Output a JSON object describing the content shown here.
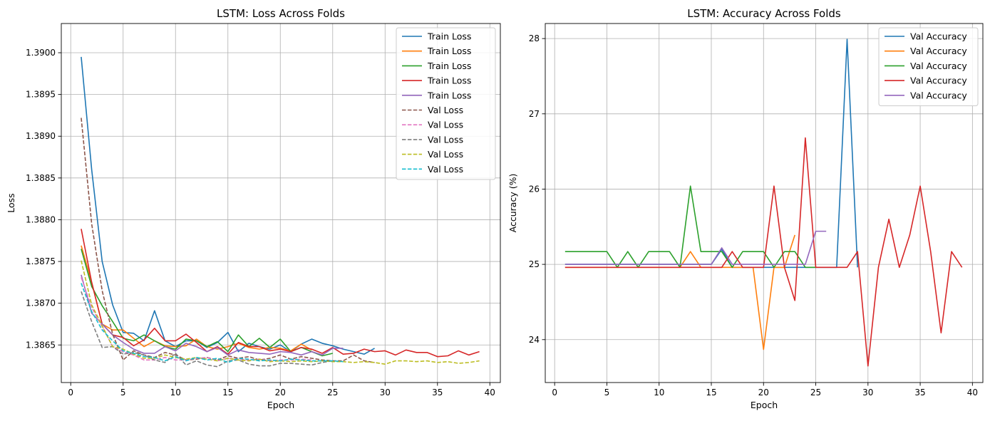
{
  "colors": {
    "c0": "#1f77b4",
    "c1": "#ff7f0e",
    "c2": "#2ca02c",
    "c3": "#d62728",
    "c4": "#9467bd",
    "c5": "#8c564b",
    "c6": "#e377c2",
    "c7": "#7f7f7f",
    "c8": "#bcbd22",
    "c9": "#17becf"
  },
  "chart_data": [
    {
      "type": "line",
      "title": "LSTM: Loss Across Folds",
      "xlabel": "Epoch",
      "ylabel": "Loss",
      "xlim": [
        -0.9,
        41.0
      ],
      "ylim": [
        1.38605,
        1.39035
      ],
      "xticks": [
        0,
        5,
        10,
        15,
        20,
        25,
        30,
        35,
        40
      ],
      "yticks": [
        1.3865,
        1.387,
        1.3875,
        1.388,
        1.3885,
        1.389,
        1.3895,
        1.39
      ],
      "ytick_labels": [
        "1.3865",
        "1.3870",
        "1.3875",
        "1.3880",
        "1.3885",
        "1.3890",
        "1.3895",
        "1.3900"
      ],
      "grid": true,
      "legend": "upper right",
      "series": [
        {
          "name": "Train Loss",
          "color": "#1f77b4",
          "dash": "solid",
          "x": [
            1,
            2,
            3,
            4,
            5,
            6,
            7,
            8,
            9,
            10,
            11,
            12,
            13,
            14,
            15,
            16,
            17,
            18,
            19,
            20,
            21,
            22,
            23,
            24,
            25,
            26,
            27,
            28,
            29
          ],
          "y": [
            1.38995,
            1.3886,
            1.3875,
            1.38698,
            1.38665,
            1.38664,
            1.38655,
            1.38691,
            1.38655,
            1.38648,
            1.38655,
            1.38655,
            1.38647,
            1.38653,
            1.38665,
            1.38642,
            1.38652,
            1.38648,
            1.38645,
            1.3865,
            1.38642,
            1.38651,
            1.38657,
            1.38652,
            1.38649,
            1.38645,
            1.38642,
            1.38639,
            1.38646
          ]
        },
        {
          "name": "Train Loss",
          "color": "#ff7f0e",
          "dash": "solid",
          "x": [
            1,
            2,
            3,
            4,
            5,
            6,
            7,
            8,
            9,
            10,
            11,
            12,
            13,
            14,
            15,
            16,
            17,
            18,
            19,
            20,
            21,
            22,
            23
          ],
          "y": [
            1.38769,
            1.38725,
            1.38675,
            1.38668,
            1.38668,
            1.38658,
            1.38648,
            1.38655,
            1.38649,
            1.38648,
            1.38649,
            1.38657,
            1.38648,
            1.38645,
            1.38648,
            1.38652,
            1.38647,
            1.38645,
            1.38647,
            1.38646,
            1.38643,
            1.38651,
            1.38644
          ]
        },
        {
          "name": "Train Loss",
          "color": "#2ca02c",
          "dash": "solid",
          "x": [
            1,
            2,
            3,
            4,
            5,
            6,
            7,
            8,
            9,
            10,
            11,
            12,
            13,
            14,
            15,
            16,
            17,
            18,
            19,
            20,
            21,
            22,
            23,
            24,
            25
          ],
          "y": [
            1.38765,
            1.3872,
            1.38697,
            1.38678,
            1.38658,
            1.38655,
            1.38662,
            1.38655,
            1.38648,
            1.38645,
            1.38657,
            1.38655,
            1.38648,
            1.38654,
            1.38642,
            1.38662,
            1.38648,
            1.38658,
            1.38647,
            1.38657,
            1.38642,
            1.38647,
            1.38642,
            1.38637,
            1.3864
          ]
        },
        {
          "name": "Train Loss",
          "color": "#d62728",
          "dash": "solid",
          "x": [
            1,
            2,
            3,
            4,
            5,
            6,
            7,
            8,
            9,
            10,
            11,
            12,
            13,
            14,
            15,
            16,
            17,
            18,
            19,
            20,
            21,
            22,
            23,
            24,
            25,
            26,
            27,
            28,
            29,
            30,
            31,
            32,
            33,
            34,
            35,
            36,
            37,
            38,
            39
          ],
          "y": [
            1.38789,
            1.38725,
            1.38675,
            1.38662,
            1.38659,
            1.38649,
            1.38656,
            1.3867,
            1.38655,
            1.38655,
            1.38663,
            1.38653,
            1.38642,
            1.38648,
            1.38639,
            1.38653,
            1.38648,
            1.38648,
            1.38643,
            1.38645,
            1.38642,
            1.38647,
            1.38645,
            1.3864,
            1.38647,
            1.38639,
            1.3864,
            1.38645,
            1.38642,
            1.38643,
            1.38638,
            1.38644,
            1.38641,
            1.38641,
            1.38636,
            1.38637,
            1.38643,
            1.38638,
            1.38642
          ]
        },
        {
          "name": "Train Loss",
          "color": "#9467bd",
          "dash": "solid",
          "x": [
            1,
            2,
            3,
            4,
            5,
            6,
            7,
            8,
            9,
            10,
            11,
            12,
            13,
            14,
            15,
            16,
            17,
            18,
            19,
            20,
            21,
            22,
            23,
            24,
            25,
            26
          ],
          "y": [
            1.38734,
            1.38688,
            1.38675,
            1.38662,
            1.38653,
            1.38645,
            1.3864,
            1.3864,
            1.38648,
            1.38643,
            1.38652,
            1.38648,
            1.38642,
            1.38647,
            1.38638,
            1.38644,
            1.38641,
            1.3864,
            1.38639,
            1.38642,
            1.38641,
            1.38638,
            1.38642,
            1.38638,
            1.38646,
            1.38646
          ]
        },
        {
          "name": "Val Loss",
          "color": "#8c564b",
          "dash": "dashed",
          "x": [
            1,
            2,
            3,
            4,
            5,
            6,
            7,
            8,
            9,
            10,
            11,
            12,
            13,
            14,
            15,
            16,
            17,
            18,
            19,
            20,
            21,
            22,
            23,
            24,
            25,
            26,
            27,
            28,
            29
          ],
          "y": [
            1.38922,
            1.38795,
            1.38715,
            1.38663,
            1.38632,
            1.38643,
            1.38638,
            1.38635,
            1.38641,
            1.38638,
            1.38632,
            1.38633,
            1.38635,
            1.38632,
            1.38637,
            1.38634,
            1.38636,
            1.38632,
            1.38634,
            1.38638,
            1.38633,
            1.38636,
            1.38634,
            1.38632,
            1.38631,
            1.38631,
            1.38638,
            1.38631,
            1.38629
          ]
        },
        {
          "name": "Val Loss",
          "color": "#e377c2",
          "dash": "dashed",
          "x": [
            1,
            2,
            3,
            4,
            5,
            6,
            7,
            8,
            9,
            10,
            11,
            12,
            13,
            14,
            15,
            16,
            17,
            18,
            19,
            20,
            21,
            22,
            23
          ],
          "y": [
            1.38731,
            1.38695,
            1.38672,
            1.38648,
            1.38642,
            1.38638,
            1.38632,
            1.38632,
            1.38635,
            1.38632,
            1.38632,
            1.38634,
            1.38635,
            1.38631,
            1.38634,
            1.38633,
            1.38632,
            1.38633,
            1.38631,
            1.38632,
            1.38632,
            1.38633,
            1.38632
          ]
        },
        {
          "name": "Val Loss",
          "color": "#7f7f7f",
          "dash": "dashed",
          "x": [
            1,
            2,
            3,
            4,
            5,
            6,
            7,
            8,
            9,
            10,
            11,
            12,
            13,
            14,
            15,
            16,
            17,
            18,
            19,
            20,
            21,
            22,
            23,
            24,
            25
          ],
          "y": [
            1.38714,
            1.38678,
            1.38647,
            1.38648,
            1.38639,
            1.38641,
            1.38638,
            1.38632,
            1.38629,
            1.3864,
            1.38626,
            1.38631,
            1.38626,
            1.38624,
            1.38631,
            1.38632,
            1.38627,
            1.38625,
            1.38625,
            1.38628,
            1.38628,
            1.38627,
            1.38626,
            1.38629,
            1.38631
          ]
        },
        {
          "name": "Val Loss",
          "color": "#bcbd22",
          "dash": "dashed",
          "x": [
            1,
            2,
            3,
            4,
            5,
            6,
            7,
            8,
            9,
            10,
            11,
            12,
            13,
            14,
            15,
            16,
            17,
            18,
            19,
            20,
            21,
            22,
            23,
            24,
            25,
            26,
            27,
            28,
            29,
            30,
            31,
            32,
            33,
            34,
            35,
            36,
            37,
            38,
            39
          ],
          "y": [
            1.38751,
            1.38698,
            1.38673,
            1.38648,
            1.38645,
            1.38639,
            1.38634,
            1.38634,
            1.38638,
            1.38635,
            1.38633,
            1.38635,
            1.38633,
            1.38631,
            1.38634,
            1.38632,
            1.38631,
            1.38633,
            1.3863,
            1.38631,
            1.3863,
            1.38631,
            1.3863,
            1.38631,
            1.3863,
            1.3863,
            1.38629,
            1.3863,
            1.38629,
            1.38627,
            1.38631,
            1.38631,
            1.3863,
            1.38631,
            1.38629,
            1.3863,
            1.38628,
            1.38629,
            1.38631
          ]
        },
        {
          "name": "Val Loss",
          "color": "#17becf",
          "dash": "dashed",
          "x": [
            1,
            2,
            3,
            4,
            5,
            6,
            7,
            8,
            9,
            10,
            11,
            12,
            13,
            14,
            15,
            16,
            17,
            18,
            19,
            20,
            21,
            22,
            23,
            24,
            25,
            26
          ],
          "y": [
            1.38724,
            1.3869,
            1.38668,
            1.38655,
            1.38643,
            1.3864,
            1.38636,
            1.38635,
            1.38631,
            1.38636,
            1.38631,
            1.38635,
            1.38632,
            1.38634,
            1.38629,
            1.38634,
            1.38633,
            1.38631,
            1.38632,
            1.38631,
            1.38633,
            1.38632,
            1.38631,
            1.38631,
            1.38631,
            1.3863
          ]
        }
      ]
    },
    {
      "type": "line",
      "title": "LSTM: Accuracy Across Folds",
      "xlabel": "Epoch",
      "ylabel": "Accuracy (%)",
      "xlim": [
        -0.9,
        41.0
      ],
      "ylim": [
        23.43,
        28.2
      ],
      "xticks": [
        0,
        5,
        10,
        15,
        20,
        25,
        30,
        35,
        40
      ],
      "yticks": [
        24,
        25,
        26,
        27,
        28
      ],
      "ytick_labels": [
        "24",
        "25",
        "26",
        "27",
        "28"
      ],
      "grid": true,
      "legend": "upper right",
      "series": [
        {
          "name": "Val Accuracy",
          "color": "#1f77b4",
          "dash": "solid",
          "x": [
            1,
            2,
            3,
            4,
            5,
            6,
            7,
            8,
            9,
            10,
            11,
            12,
            13,
            14,
            15,
            16,
            17,
            18,
            19,
            20,
            21,
            22,
            23,
            24,
            25,
            26,
            27,
            28,
            29
          ],
          "y": [
            25.0,
            25.0,
            25.0,
            25.0,
            25.0,
            25.0,
            25.0,
            25.0,
            25.0,
            25.0,
            25.0,
            25.0,
            25.0,
            25.0,
            25.0,
            25.2,
            24.96,
            24.96,
            24.96,
            24.96,
            24.96,
            24.96,
            24.96,
            24.96,
            24.96,
            24.96,
            24.96,
            27.99,
            24.96
          ]
        },
        {
          "name": "Val Accuracy",
          "color": "#ff7f0e",
          "dash": "solid",
          "x": [
            1,
            2,
            3,
            4,
            5,
            6,
            7,
            8,
            9,
            10,
            11,
            12,
            13,
            14,
            15,
            16,
            17,
            18,
            19,
            20,
            21,
            22,
            23
          ],
          "y": [
            24.96,
            24.96,
            24.96,
            24.96,
            24.96,
            24.96,
            24.96,
            24.96,
            24.96,
            24.96,
            24.96,
            24.96,
            25.17,
            24.96,
            24.96,
            24.96,
            24.96,
            24.96,
            24.96,
            23.87,
            24.96,
            24.96,
            25.39
          ]
        },
        {
          "name": "Val Accuracy",
          "color": "#2ca02c",
          "dash": "solid",
          "x": [
            1,
            2,
            3,
            4,
            5,
            6,
            7,
            8,
            9,
            10,
            11,
            12,
            13,
            14,
            15,
            16,
            17,
            18,
            19,
            20,
            21,
            22,
            23,
            24,
            25
          ],
          "y": [
            25.17,
            25.17,
            25.17,
            25.17,
            25.17,
            24.96,
            25.17,
            24.96,
            25.17,
            25.17,
            25.17,
            24.96,
            26.04,
            25.17,
            25.17,
            25.17,
            24.96,
            25.17,
            25.17,
            25.17,
            24.96,
            25.17,
            25.17,
            24.96,
            24.96
          ]
        },
        {
          "name": "Val Accuracy",
          "color": "#d62728",
          "dash": "solid",
          "x": [
            1,
            2,
            3,
            4,
            5,
            6,
            7,
            8,
            9,
            10,
            11,
            12,
            13,
            14,
            15,
            16,
            17,
            18,
            19,
            20,
            21,
            22,
            23,
            24,
            25,
            26,
            27,
            28,
            29,
            30,
            31,
            32,
            33,
            34,
            35,
            36,
            37,
            38,
            39
          ],
          "y": [
            24.96,
            24.96,
            24.96,
            24.96,
            24.96,
            24.96,
            24.96,
            24.96,
            24.96,
            24.96,
            24.96,
            24.96,
            24.96,
            24.96,
            24.96,
            24.96,
            25.17,
            24.96,
            24.96,
            24.96,
            26.04,
            24.96,
            24.52,
            26.68,
            24.96,
            24.96,
            24.96,
            24.96,
            25.17,
            23.65,
            24.96,
            25.6,
            24.96,
            25.39,
            26.04,
            25.17,
            24.09,
            25.17,
            24.96
          ]
        },
        {
          "name": "Val Accuracy",
          "color": "#9467bd",
          "dash": "solid",
          "x": [
            1,
            2,
            3,
            4,
            5,
            6,
            7,
            8,
            9,
            10,
            11,
            12,
            13,
            14,
            15,
            16,
            17,
            18,
            19,
            20,
            21,
            22,
            23,
            24,
            25,
            26
          ],
          "y": [
            25.0,
            25.0,
            25.0,
            25.0,
            25.0,
            25.0,
            25.0,
            25.0,
            25.0,
            25.0,
            25.0,
            25.0,
            25.0,
            25.0,
            25.0,
            25.22,
            25.0,
            25.0,
            25.0,
            25.0,
            25.0,
            25.0,
            25.0,
            25.0,
            25.44,
            25.44
          ]
        }
      ]
    }
  ]
}
